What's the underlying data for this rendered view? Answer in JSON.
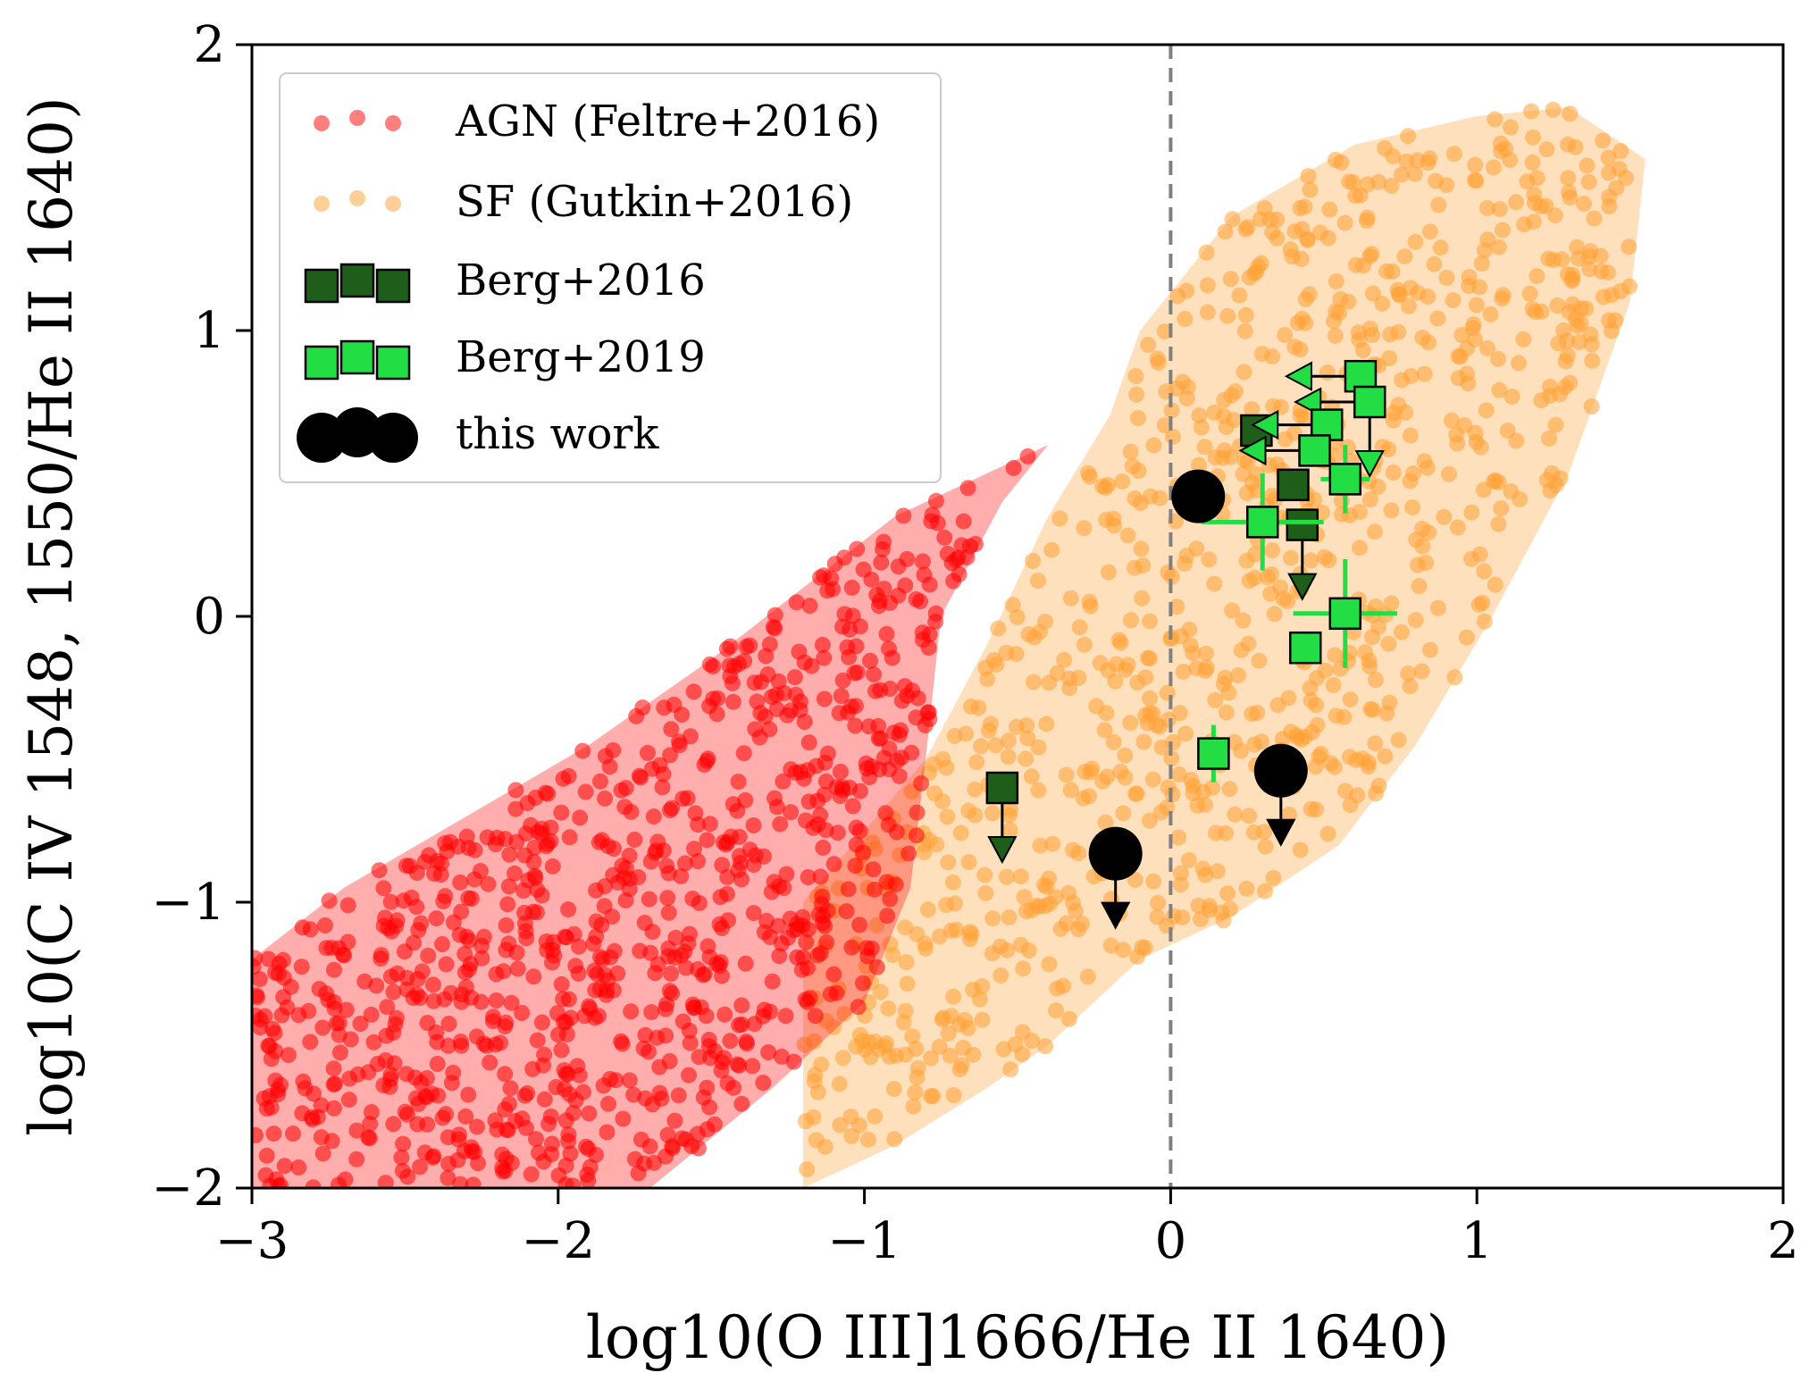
{
  "chart_data": {
    "type": "scatter",
    "xlabel": "log10(O III]1666/He II 1640)",
    "ylabel": "log10(C IV 1548, 1550/He II 1640)",
    "xlim": [
      -3,
      2
    ],
    "ylim": [
      -2,
      2
    ],
    "x_ticks": [
      -3,
      -2,
      -1,
      0,
      1,
      2
    ],
    "x_tick_labels": [
      "−3",
      "−2",
      "−1",
      "0",
      "1",
      "2"
    ],
    "y_ticks": [
      -2,
      -1,
      0,
      1,
      2
    ],
    "y_tick_labels": [
      "−2",
      "−1",
      "0",
      "1",
      "2"
    ],
    "grid": false,
    "legend_position": "top-left",
    "reference_line": {
      "x": 0,
      "style": "dashed",
      "color": "#808080"
    },
    "series": [
      {
        "name": "AGN (Feltre+2016)",
        "kind": "model-cloud",
        "color": "#ff0000",
        "envelope": [
          [
            -3.0,
            -2.0
          ],
          [
            -3.0,
            -1.2
          ],
          [
            -2.7,
            -0.95
          ],
          [
            -2.3,
            -0.7
          ],
          [
            -1.9,
            -0.45
          ],
          [
            -1.5,
            -0.15
          ],
          [
            -1.2,
            0.1
          ],
          [
            -0.9,
            0.35
          ],
          [
            -0.6,
            0.5
          ],
          [
            -0.4,
            0.6
          ],
          [
            -0.55,
            0.4
          ],
          [
            -0.75,
            0.0
          ],
          [
            -0.8,
            -0.5
          ],
          [
            -0.85,
            -0.95
          ],
          [
            -1.0,
            -1.35
          ],
          [
            -1.3,
            -1.65
          ],
          [
            -1.7,
            -2.0
          ]
        ]
      },
      {
        "name": "SF (Gutkin+2016)",
        "kind": "model-cloud",
        "color": "#ffa033",
        "envelope": [
          [
            -1.2,
            -2.0
          ],
          [
            -1.2,
            -1.0
          ],
          [
            -0.8,
            -0.5
          ],
          [
            -0.6,
            -0.1
          ],
          [
            -0.4,
            0.35
          ],
          [
            -0.2,
            0.7
          ],
          [
            -0.1,
            1.0
          ],
          [
            0.2,
            1.4
          ],
          [
            0.6,
            1.65
          ],
          [
            1.0,
            1.75
          ],
          [
            1.3,
            1.78
          ],
          [
            1.55,
            1.6
          ],
          [
            1.5,
            1.1
          ],
          [
            1.3,
            0.5
          ],
          [
            1.05,
            0.0
          ],
          [
            0.8,
            -0.45
          ],
          [
            0.55,
            -0.8
          ],
          [
            0.2,
            -1.05
          ],
          [
            -0.1,
            -1.2
          ],
          [
            -0.4,
            -1.5
          ],
          [
            -0.6,
            -1.65
          ],
          [
            -0.9,
            -1.85
          ]
        ]
      },
      {
        "name": "Berg+2016",
        "marker": "square",
        "color": "#1e5e1a",
        "points": [
          {
            "x": 0.28,
            "y": 0.65
          },
          {
            "x": 0.4,
            "y": 0.46
          },
          {
            "x": 0.43,
            "y": 0.32,
            "upper_limit_y": true
          },
          {
            "x": -0.55,
            "y": -0.6,
            "upper_limit_y": true
          }
        ]
      },
      {
        "name": "Berg+2019",
        "marker": "square",
        "color": "#22dd44",
        "points": [
          {
            "x": 0.62,
            "y": 0.84,
            "upper_limit_x": true
          },
          {
            "x": 0.65,
            "y": 0.75,
            "upper_limit_x": true,
            "upper_limit_y": true
          },
          {
            "x": 0.51,
            "y": 0.67,
            "upper_limit_x": true
          },
          {
            "x": 0.47,
            "y": 0.58,
            "upper_limit_x": true
          },
          {
            "x": 0.57,
            "y": 0.48,
            "xerr": 0.08,
            "yerr": 0.12
          },
          {
            "x": 0.3,
            "y": 0.33,
            "xerr": 0.2,
            "yerr": 0.17
          },
          {
            "x": 0.57,
            "y": 0.01,
            "xerr": 0.17,
            "yerr": 0.19
          },
          {
            "x": 0.44,
            "y": -0.11
          },
          {
            "x": 0.14,
            "y": -0.48,
            "xerr": 0.05,
            "yerr": 0.1
          }
        ]
      },
      {
        "name": "this work",
        "marker": "circle",
        "color": "#000000",
        "points": [
          {
            "x": 0.09,
            "y": 0.42
          },
          {
            "x": 0.36,
            "y": -0.54,
            "upper_limit_y": true
          },
          {
            "x": -0.18,
            "y": -0.83,
            "upper_limit_y": true
          }
        ]
      }
    ]
  }
}
